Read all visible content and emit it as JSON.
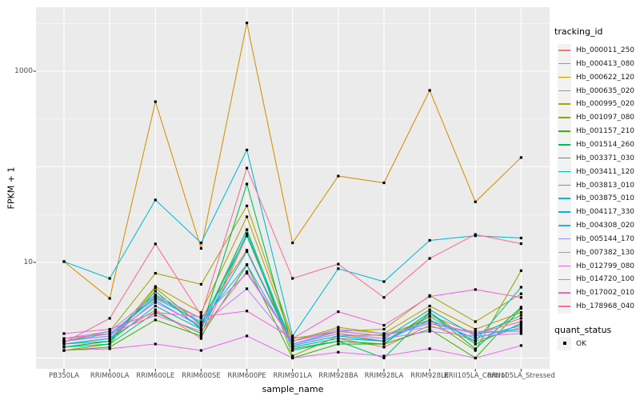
{
  "figure": {
    "x_title": "sample_name",
    "y_title": "FPKM + 1",
    "legend_tracking_title": "tracking_id",
    "legend_quant_title": "quant_status",
    "quant_status_ok_label": "OK"
  },
  "colors": {
    "panel_bg": "#EBEBEB",
    "grid": "#FFFFFF",
    "point": "#000000",
    "tick_mark": "#333333",
    "tick_text": "#4D4D4D",
    "legend_key_bg": "#F2F2F2"
  },
  "chart_data": {
    "type": "line",
    "x_type": "categorical",
    "y_scale": "log10",
    "title": "",
    "xlabel": "sample_name",
    "ylabel": "FPKM + 1",
    "grid": true,
    "legend_position": "right",
    "point_shape": "filled-black-square",
    "ylim": [
      1,
      4600
    ],
    "y_tick_labels": [
      {
        "label": "1000",
        "value": 1000
      },
      {
        "label": "10",
        "value": 10
      }
    ],
    "y_gridlines_major": [
      1,
      10,
      100,
      1000
    ],
    "y_gridlines_minor": [
      3.162,
      31.62,
      316.23,
      3162.3
    ],
    "categories": [
      "PB350LA",
      "RRIM600LA",
      "RRIM600LE",
      "RRIM600SE",
      "RRIM600PE",
      "RRIM901LA",
      "RRIM928BA",
      "RRIM928LA",
      "RRIM928LE",
      "RRII105LA_Control",
      "RRII105LA_Stressed"
    ],
    "series": [
      {
        "name": "Hb_000011_250",
        "color": "#F8766D",
        "values": [
          1.4,
          1.6,
          3.2,
          1.6,
          19,
          1.3,
          1.6,
          1.3,
          2.2,
          1.5,
          2.1
        ]
      },
      {
        "name": "Hb_000413_080",
        "color": "#EA8331",
        "values": [
          1.5,
          1.7,
          4.3,
          2.6,
          13.4,
          1.4,
          1.8,
          1.5,
          2.8,
          1.8,
          2.6
        ]
      },
      {
        "name": "Hb_000622_120",
        "color": "#D89000",
        "values": [
          10.2,
          4.2,
          480,
          14,
          3200,
          16,
          80,
          68,
          630,
          43,
          125
        ]
      },
      {
        "name": "Hb_000635_020",
        "color": "#C09B00",
        "values": [
          1.3,
          1.5,
          5.6,
          3.0,
          30,
          1.5,
          2.1,
          1.8,
          3.5,
          2.0,
          3.0
        ]
      },
      {
        "name": "Hb_000995_020",
        "color": "#A3A500",
        "values": [
          1.5,
          1.9,
          7.7,
          5.9,
          39,
          1.6,
          1.9,
          2.0,
          4.5,
          2.4,
          4.7
        ]
      },
      {
        "name": "Hb_001097_080",
        "color": "#7CAE00",
        "values": [
          1.2,
          1.4,
          5.4,
          2.2,
          22,
          1.05,
          1.7,
          1.75,
          2.5,
          1.2,
          8.2
        ]
      },
      {
        "name": "Hb_001157_210",
        "color": "#39B600",
        "values": [
          1.2,
          1.3,
          2.5,
          1.7,
          9.4,
          1.0,
          1.4,
          1.4,
          2.0,
          1.0,
          3.3
        ]
      },
      {
        "name": "Hb_001514_260",
        "color": "#00BB4E",
        "values": [
          1.3,
          1.5,
          5.0,
          2.0,
          66,
          1.25,
          1.5,
          1.4,
          3.0,
          1.25,
          3.4
        ]
      },
      {
        "name": "Hb_003371_030",
        "color": "#00BF7D",
        "values": [
          1.3,
          1.4,
          3.0,
          1.8,
          20,
          1.2,
          1.5,
          1.0,
          3.0,
          1.4,
          2.3
        ]
      },
      {
        "name": "Hb_003411_120",
        "color": "#00C1A3",
        "values": [
          1.4,
          1.5,
          3.5,
          2.0,
          22,
          1.3,
          1.6,
          1.5,
          2.7,
          1.5,
          5.5
        ]
      },
      {
        "name": "Hb_003813_010",
        "color": "#00BFC4",
        "values": [
          1.5,
          1.7,
          4.5,
          2.3,
          19,
          1.4,
          1.8,
          1.6,
          3.2,
          1.7,
          2.8
        ]
      },
      {
        "name": "Hb_003875_010",
        "color": "#00BBDA",
        "values": [
          10.2,
          6.8,
          45,
          16,
          150,
          1.7,
          8.6,
          6.3,
          17,
          19,
          18
        ]
      },
      {
        "name": "Hb_004117_330",
        "color": "#00B0F6",
        "values": [
          1.4,
          1.6,
          4.0,
          2.1,
          13,
          1.35,
          1.7,
          1.5,
          2.5,
          1.6,
          2.2
        ]
      },
      {
        "name": "Hb_004308_020",
        "color": "#35A2FF",
        "values": [
          1.5,
          1.8,
          4.2,
          2.4,
          9.5,
          1.4,
          1.9,
          1.7,
          2.3,
          1.8,
          2.0
        ]
      },
      {
        "name": "Hb_005144_170",
        "color": "#9590FF",
        "values": [
          1.6,
          1.9,
          4.6,
          2.6,
          7.7,
          1.5,
          2.0,
          1.8,
          2.1,
          1.9,
          1.9
        ]
      },
      {
        "name": "Hb_007382_130",
        "color": "#C77CFF",
        "values": [
          1.5,
          1.7,
          3.8,
          2.2,
          5.3,
          1.4,
          1.8,
          1.6,
          1.9,
          1.7,
          1.8
        ]
      },
      {
        "name": "Hb_012799_080",
        "color": "#E76BF3",
        "values": [
          1.2,
          1.25,
          1.4,
          1.2,
          1.7,
          1.0,
          1.15,
          1.05,
          1.25,
          1.0,
          1.35
        ]
      },
      {
        "name": "Hb_014720_100",
        "color": "#FA62DB",
        "values": [
          1.8,
          2.0,
          3.0,
          2.7,
          3.1,
          1.6,
          3.05,
          2.2,
          4.4,
          5.2,
          4.3
        ]
      },
      {
        "name": "Hb_017002_010",
        "color": "#FF62BC",
        "values": [
          1.6,
          1.8,
          2.8,
          1.9,
          8.0,
          1.5,
          1.9,
          1.7,
          2.4,
          1.8,
          2.4
        ]
      },
      {
        "name": "Hb_178968_040",
        "color": "#FF6A98",
        "values": [
          1.45,
          2.6,
          15.6,
          2.8,
          97,
          6.8,
          9.6,
          4.3,
          11,
          19.6,
          15.7
        ]
      }
    ],
    "quant_status": [
      {
        "label": "OK"
      }
    ]
  }
}
